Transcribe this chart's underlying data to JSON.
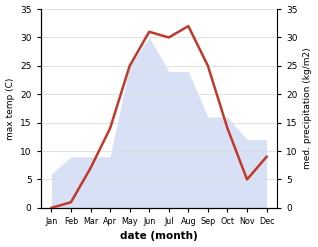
{
  "months": [
    "Jan",
    "Feb",
    "Mar",
    "Apr",
    "May",
    "Jun",
    "Jul",
    "Aug",
    "Sep",
    "Oct",
    "Nov",
    "Dec"
  ],
  "temp": [
    0,
    1,
    7,
    14,
    25,
    31,
    30,
    32,
    25,
    14,
    5,
    9
  ],
  "precip": [
    6,
    9,
    9,
    9,
    25,
    30,
    24,
    24,
    16,
    16,
    12,
    12
  ],
  "temp_color": "#c0392b",
  "precip_color": "#b8c8f0",
  "ylim_left": [
    0,
    35
  ],
  "ylim_right": [
    0,
    35
  ],
  "yticks": [
    0,
    5,
    10,
    15,
    20,
    25,
    30,
    35
  ],
  "ylabel_left": "max temp (C)",
  "ylabel_right": "med. precipitation (kg/m2)",
  "xlabel": "date (month)",
  "bg_color": "#ffffff",
  "temp_linewidth": 1.8,
  "fill_alpha": 0.55,
  "grid_color": "#dddddd",
  "figsize": [
    3.18,
    2.47
  ],
  "dpi": 100
}
